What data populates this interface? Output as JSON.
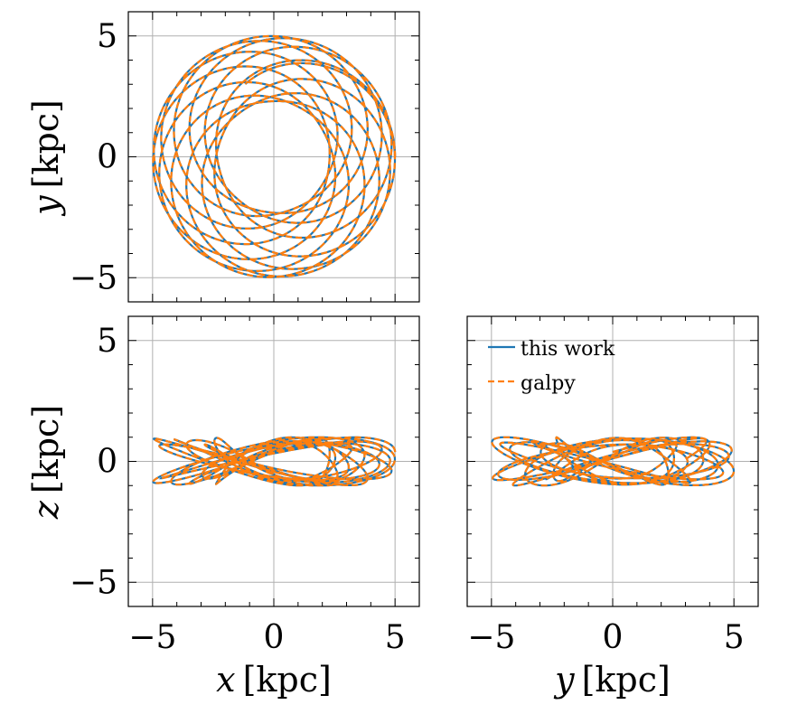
{
  "chart_data": [
    {
      "type": "line",
      "panel": "xy",
      "xlabel_var": "x",
      "xlabel_unit": "[kpc]",
      "ylabel_var": "y",
      "ylabel_unit": "[kpc]",
      "xlim": [
        -6,
        6
      ],
      "ylim": [
        -6,
        6
      ],
      "yticks": [
        -5,
        0,
        5
      ],
      "grid": true,
      "orbit": {
        "inner_radius": 2.3,
        "outer_radius": 5.0,
        "petals": 12,
        "loops": 1
      },
      "series": [
        {
          "name": "this work",
          "color": "#1f77b4",
          "style": "solid"
        },
        {
          "name": "galpy",
          "color": "#ff7f0e",
          "style": "dashed"
        }
      ]
    },
    {
      "type": "line",
      "panel": "xz",
      "xlabel_var": "x",
      "xlabel_unit": "[kpc]",
      "ylabel_var": "z",
      "ylabel_unit": "[kpc]",
      "xlim": [
        -6,
        6
      ],
      "ylim": [
        -6,
        6
      ],
      "xticks": [
        -5,
        0,
        5
      ],
      "yticks": [
        -5,
        0,
        5
      ],
      "grid": true,
      "z_amplitude": 1.0,
      "series": [
        {
          "name": "this work",
          "color": "#1f77b4",
          "style": "solid"
        },
        {
          "name": "galpy",
          "color": "#ff7f0e",
          "style": "dashed"
        }
      ]
    },
    {
      "type": "line",
      "panel": "yz",
      "xlabel_var": "y",
      "xlabel_unit": "[kpc]",
      "xlim": [
        -6,
        6
      ],
      "ylim": [
        -6,
        6
      ],
      "xticks": [
        -5,
        0,
        5
      ],
      "grid": true,
      "legend": {
        "position": "top-left",
        "entries": [
          "this work",
          "galpy"
        ]
      },
      "series": [
        {
          "name": "this work",
          "color": "#1f77b4",
          "style": "solid"
        },
        {
          "name": "galpy",
          "color": "#ff7f0e",
          "style": "dashed"
        }
      ]
    }
  ],
  "legend": {
    "entries": [
      "this work",
      "galpy"
    ]
  }
}
